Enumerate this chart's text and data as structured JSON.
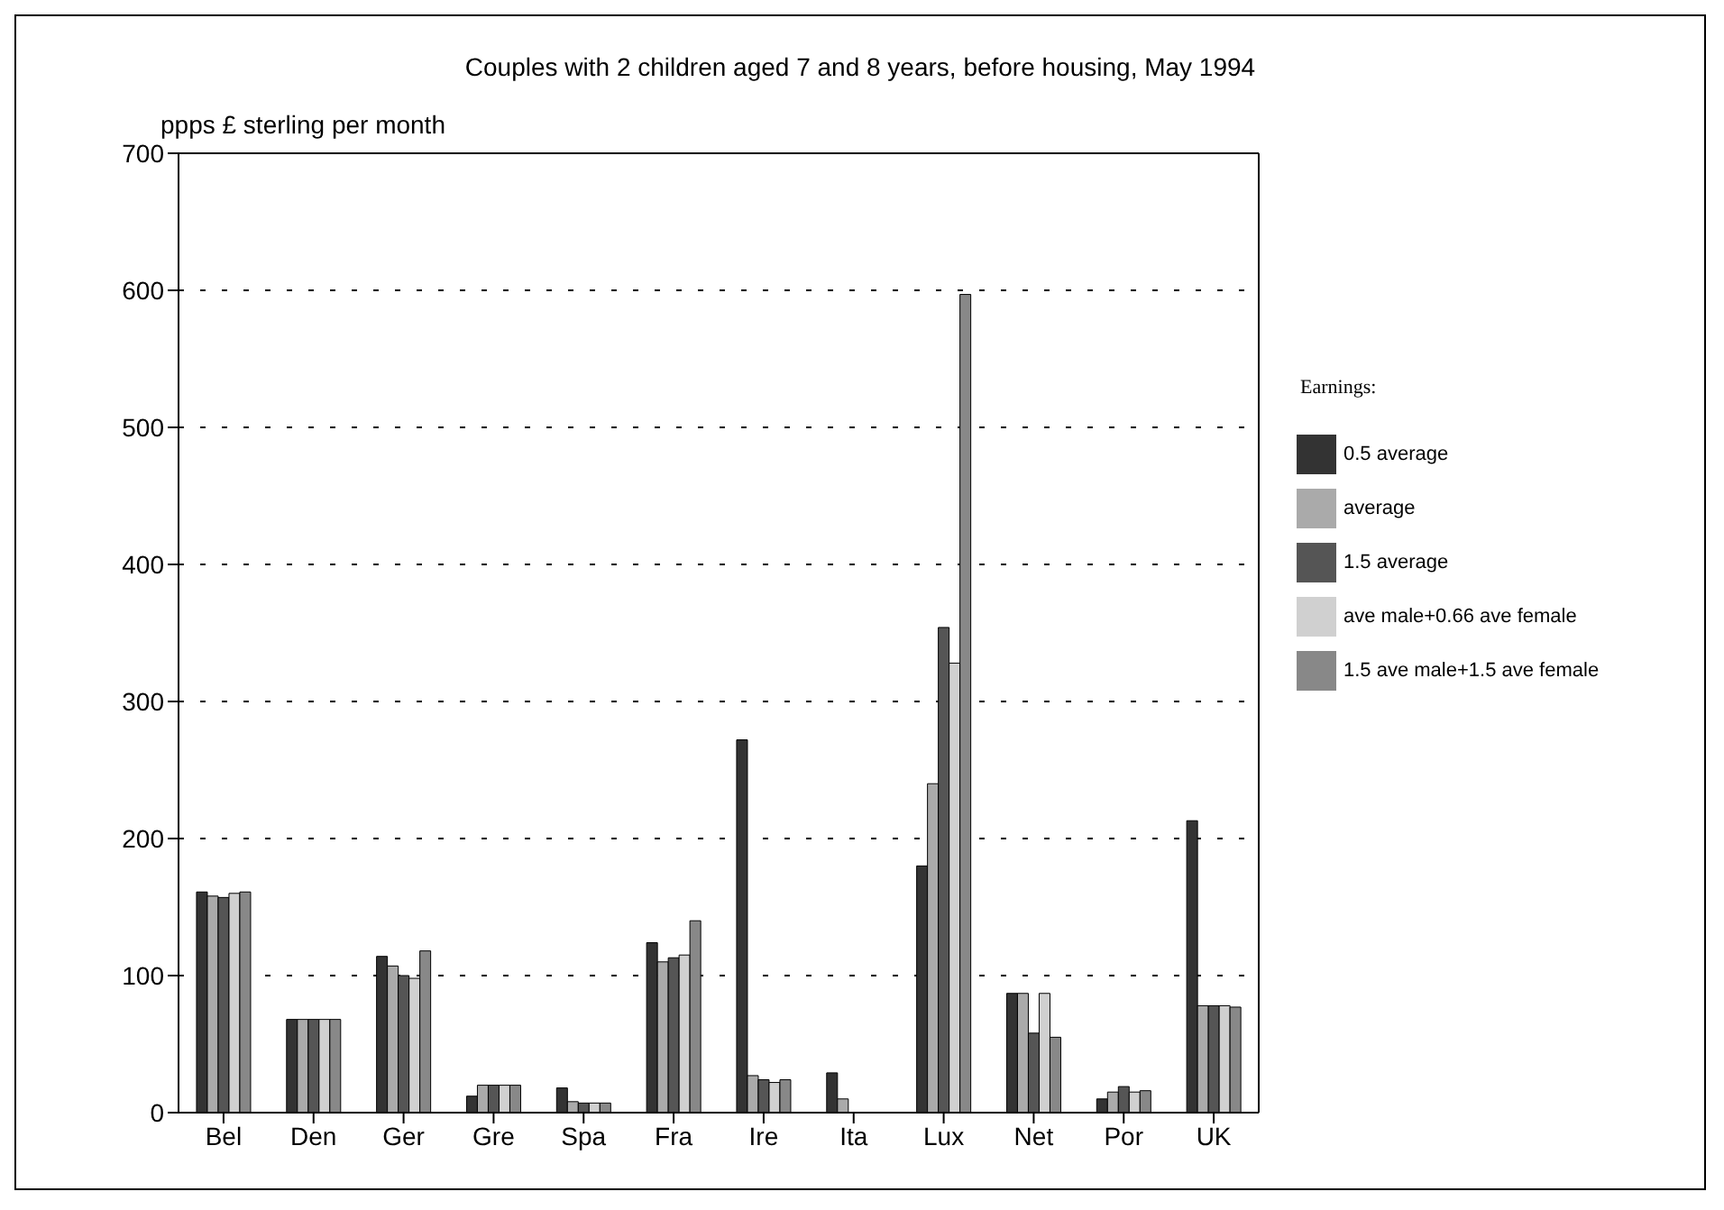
{
  "chart_data": {
    "type": "bar",
    "title": "Couples with 2 children aged 7 and 8 years, before housing, May 1994",
    "ylabel": "ppps £ sterling per month",
    "legend_title": "Earnings:",
    "categories": [
      "Bel",
      "Den",
      "Ger",
      "Gre",
      "Spa",
      "Fra",
      "Ire",
      "Ita",
      "Lux",
      "Net",
      "Por",
      "UK"
    ],
    "series": [
      {
        "name": "0.5 average",
        "color": "#333333",
        "values": [
          161,
          68,
          114,
          12,
          18,
          124,
          272,
          29,
          180,
          87,
          10,
          213
        ]
      },
      {
        "name": "average",
        "color": "#aaaaaa",
        "values": [
          158,
          68,
          107,
          20,
          8,
          110,
          27,
          10,
          240,
          87,
          15,
          78
        ]
      },
      {
        "name": "1.5 average",
        "color": "#555555",
        "values": [
          157,
          68,
          100,
          20,
          7,
          113,
          24,
          0,
          354,
          58,
          19,
          78
        ]
      },
      {
        "name": "ave male+0.66 ave female",
        "color": "#d0d0d0",
        "values": [
          160,
          68,
          98,
          20,
          7,
          115,
          22,
          0,
          328,
          87,
          15,
          78
        ]
      },
      {
        "name": "1.5 ave male+1.5 ave female",
        "color": "#888888",
        "values": [
          161,
          68,
          118,
          20,
          7,
          140,
          24,
          0,
          597,
          55,
          16,
          77
        ]
      }
    ],
    "ylim": [
      0,
      700
    ],
    "yticks": [
      0,
      100,
      200,
      300,
      400,
      500,
      600,
      700
    ],
    "grid": "y",
    "legend": "right"
  }
}
